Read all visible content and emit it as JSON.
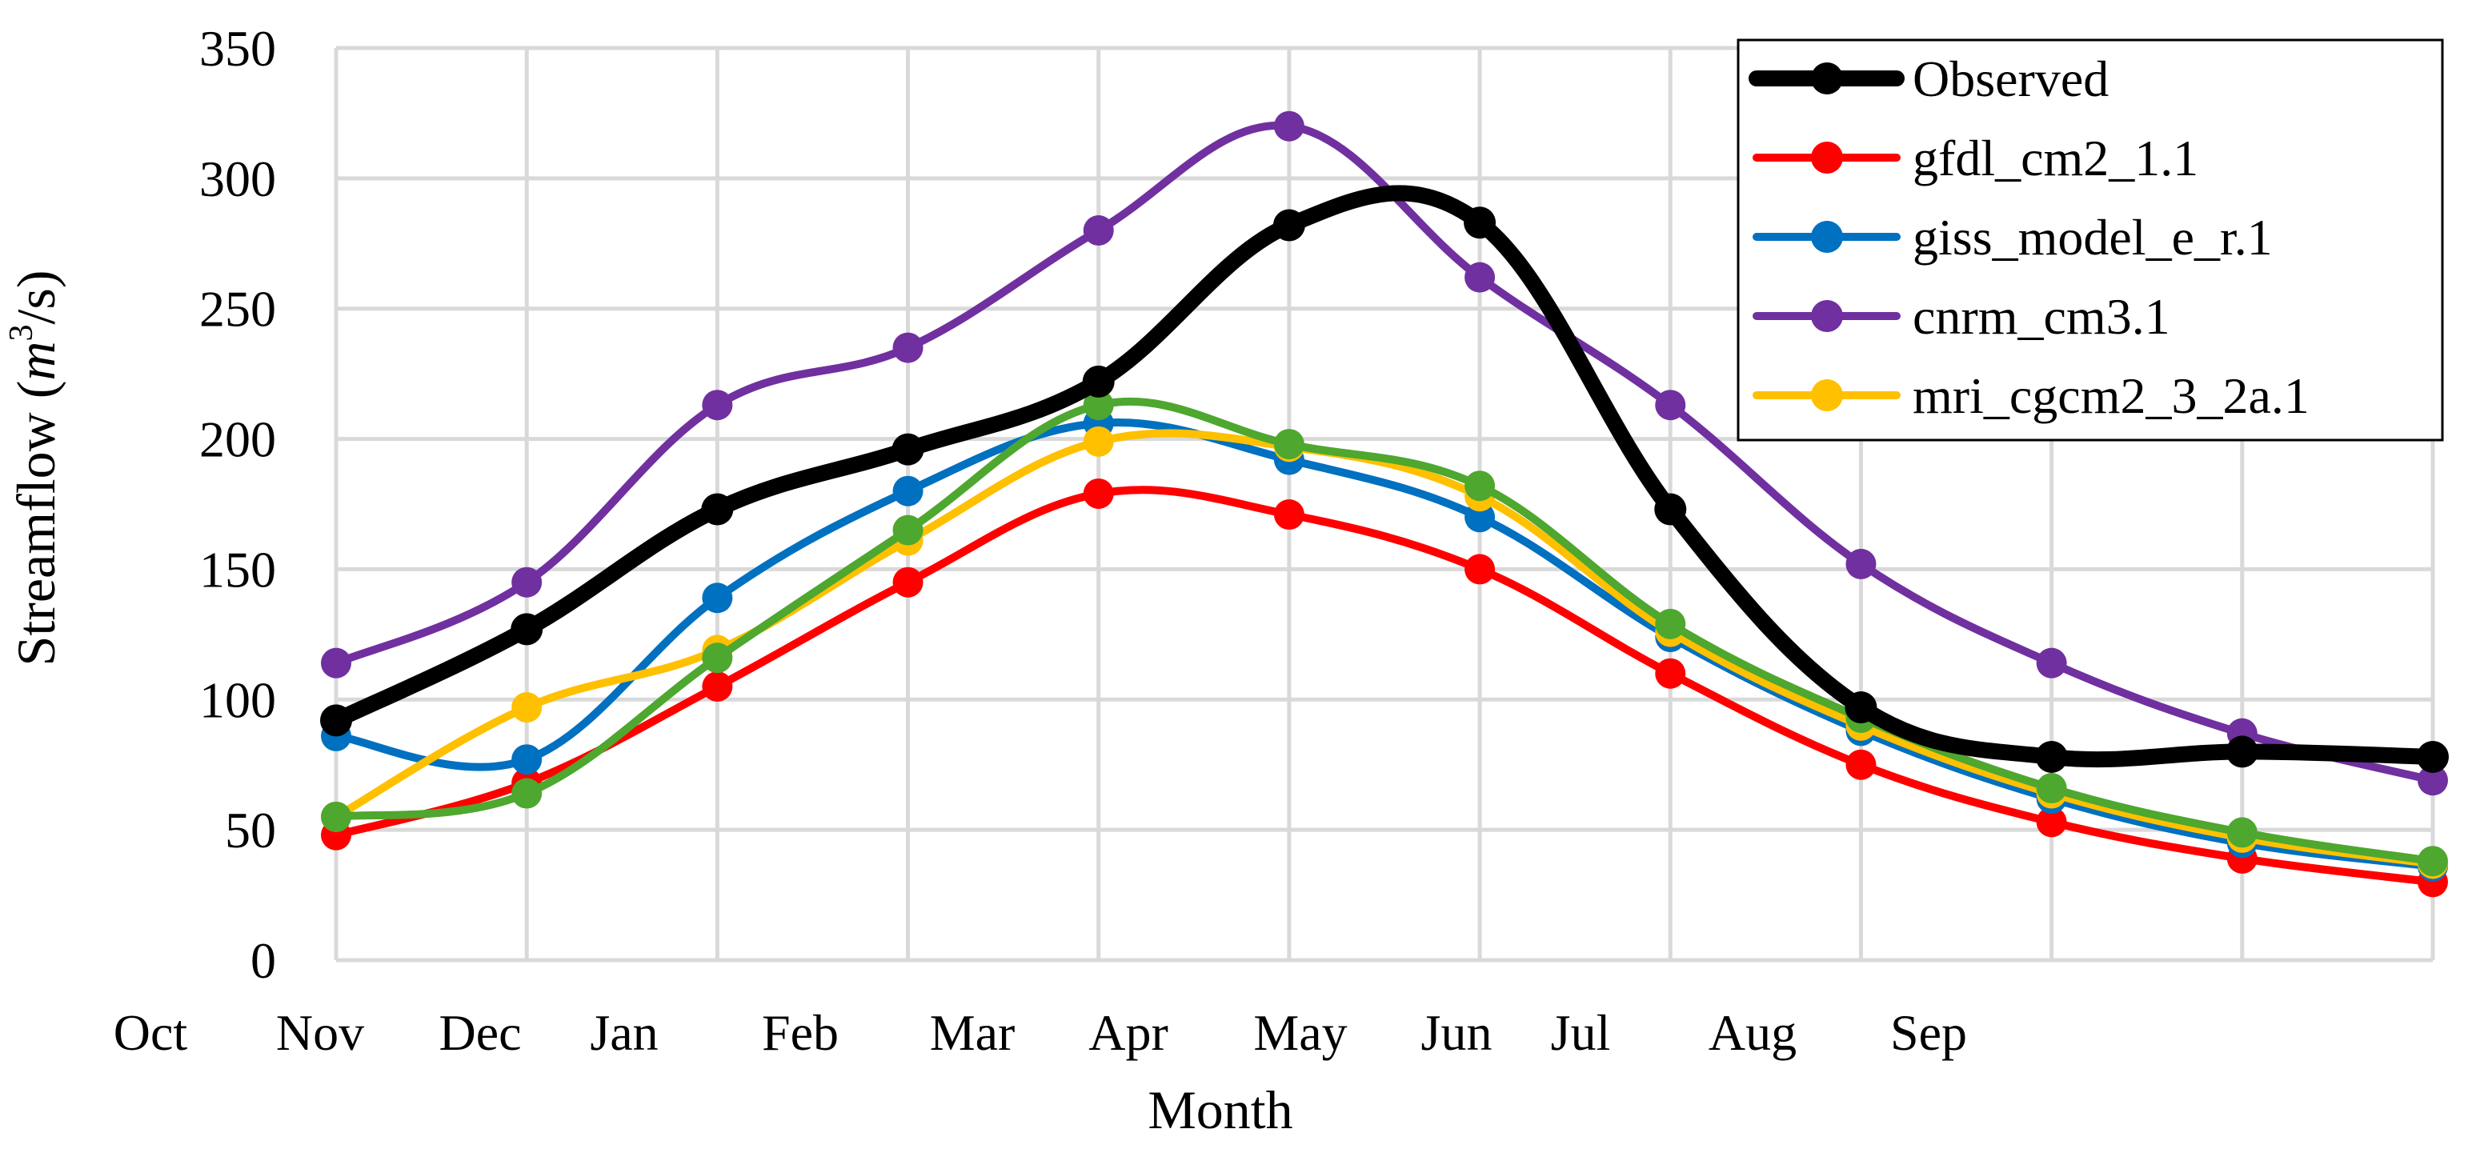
{
  "chart_data": {
    "type": "line",
    "title": "",
    "xlabel": "Month",
    "ylabel": "Streamflow (m³/s)",
    "ylabel_parts": {
      "prefix": "Streamflow (",
      "m": "m",
      "exp": "3",
      "suffix": "/s)"
    },
    "ylim": [
      0,
      350
    ],
    "yticks": [
      "0",
      "50",
      "100",
      "150",
      "200",
      "250",
      "300",
      "350"
    ],
    "x_tick_labels": [
      "Oct",
      "Nov",
      "Dec",
      "Jan",
      "Feb",
      "Mar",
      "Apr",
      "May",
      "Jun",
      "Jul",
      "Aug",
      "Sep"
    ],
    "grid": true,
    "legend_position": "top-right",
    "series": [
      {
        "name": "Observed",
        "color": "#000000",
        "values": [
          92,
          127,
          173,
          196,
          222,
          282,
          283,
          173,
          97,
          78,
          80,
          78
        ]
      },
      {
        "name": "gfdl_cm2_1.1",
        "color": "#FF0000",
        "values": [
          48,
          68,
          105,
          145,
          179,
          171,
          150,
          110,
          75,
          53,
          39,
          30
        ]
      },
      {
        "name": "giss_model_e_r.1",
        "color": "#0070C0",
        "values": [
          86,
          77,
          139,
          180,
          206,
          192,
          170,
          124,
          88,
          62,
          45,
          36
        ]
      },
      {
        "name": "cnrm_cm3.1",
        "color": "#7030A0",
        "values": [
          114,
          145,
          213,
          235,
          280,
          320,
          262,
          213,
          152,
          114,
          87,
          69
        ]
      },
      {
        "name": "mri_cgcm2_3_2a.1",
        "color": "#FFC000",
        "values": [
          55,
          97,
          119,
          161,
          199,
          197,
          178,
          126,
          90,
          64,
          47,
          37
        ]
      },
      {
        "name": "",
        "color": "#4EA72E",
        "values": [
          55,
          64,
          116,
          165,
          213,
          198,
          182,
          129,
          93,
          66,
          49,
          38
        ]
      }
    ]
  }
}
